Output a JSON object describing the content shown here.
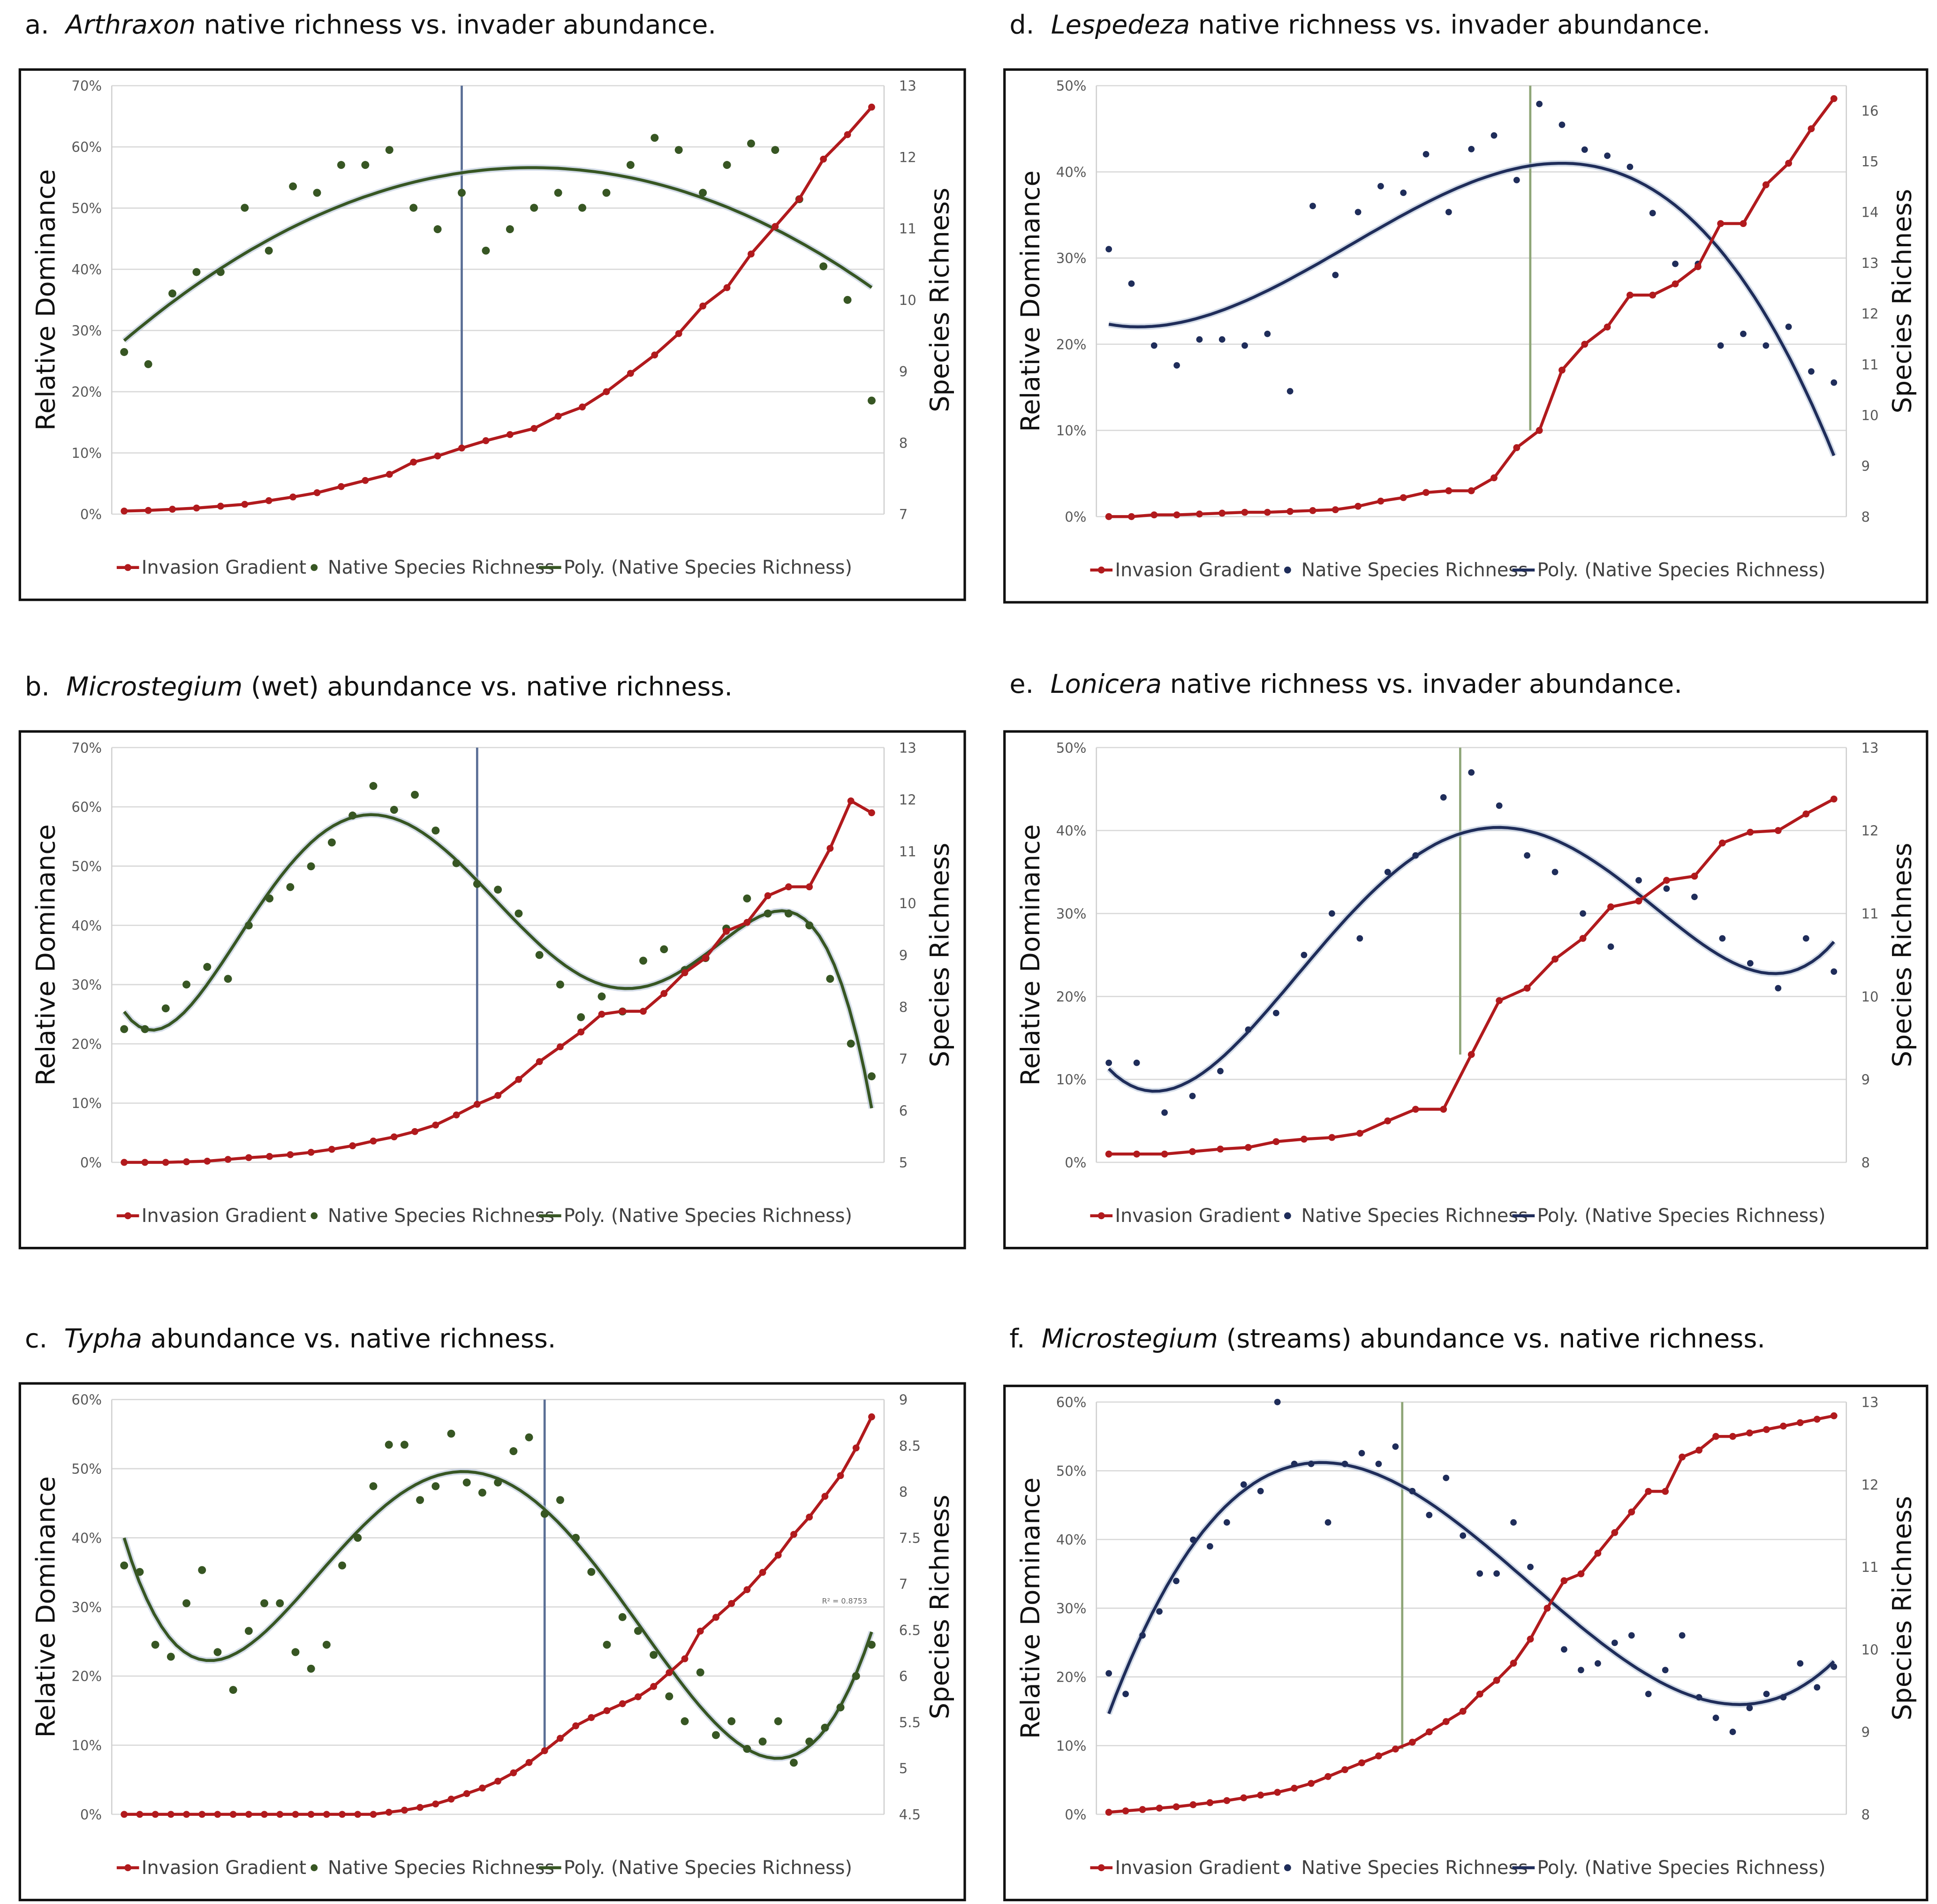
{
  "colors": {
    "invasion": "#b11a1d",
    "green": "#375623",
    "navy": "#1f2d5a",
    "grid": "#d9d9d9",
    "vline_blue": "#5b6f96",
    "vline_green": "#8fa678"
  },
  "chart_data": [
    {
      "id": "a",
      "type": "line",
      "title": {
        "letter": "a.",
        "genus": "Arthraxon",
        "rest": " native richness vs. invader abundance."
      },
      "ylabel": "Relative Dominance",
      "y2label": "Species Richness",
      "ylim": [
        0,
        70
      ],
      "yticks": [
        "0%",
        "10%",
        "20%",
        "30%",
        "40%",
        "50%",
        "60%",
        "70%"
      ],
      "y2lim": [
        7,
        13
      ],
      "y2ticks": [
        "7",
        "8",
        "9",
        "10",
        "11",
        "12",
        "13"
      ],
      "legend": [
        "Invasion Gradient",
        "Native Species Richness",
        "Poly. (Native Species Richness)"
      ],
      "richness_color": "green",
      "vline_color": "vline_blue",
      "threshold_index": 14,
      "poly_degree": 2,
      "invasion": [
        0.5,
        0.6,
        0.8,
        1,
        1.3,
        1.6,
        2.2,
        2.8,
        3.5,
        4.5,
        5.5,
        6.5,
        8.5,
        9.5,
        10.8,
        12,
        13,
        14,
        16,
        17.5,
        20,
        23,
        26,
        29.5,
        34,
        37,
        42.5,
        47,
        51.5,
        58,
        62,
        66.5
      ],
      "richness": [
        9.27,
        9.1,
        10.09,
        10.39,
        10.39,
        11.29,
        10.69,
        11.59,
        11.5,
        11.89,
        11.89,
        12.1,
        11.29,
        10.99,
        11.5,
        10.69,
        10.99,
        11.29,
        11.5,
        11.29,
        11.5,
        11.89,
        12.27,
        12.1,
        11.5,
        11.89,
        12.19,
        12.1,
        11.41,
        10.47,
        10.0,
        8.59
      ]
    },
    {
      "id": "d",
      "type": "line",
      "title": {
        "letter": "d.",
        "genus": "Lespedeza",
        "rest": " native richness vs. invader abundance."
      },
      "ylabel": "Relative Dominance",
      "y2label": "Species Richness",
      "ylim": [
        0,
        50
      ],
      "yticks": [
        "0%",
        "10%",
        "20%",
        "30%",
        "40%",
        "50%"
      ],
      "y2lim": [
        8,
        16.49
      ],
      "y2ticks": [
        "8",
        "9",
        "10",
        "11",
        "12",
        "13",
        "14",
        "15",
        "16"
      ],
      "legend": [
        "Invasion Gradient",
        "Native Species Richness",
        "Poly. (Native Species Richness)"
      ],
      "richness_color": "navy",
      "vline_color": "vline_green",
      "threshold_index": 18.6,
      "poly_degree": 3,
      "invasion": [
        0,
        0,
        0.2,
        0.2,
        0.3,
        0.4,
        0.5,
        0.5,
        0.6,
        0.7,
        0.8,
        1.2,
        1.8,
        2.2,
        2.8,
        3,
        3,
        4.5,
        8,
        10,
        17,
        20,
        22,
        25.7,
        25.7,
        27,
        29,
        34,
        34,
        38.5,
        41,
        45,
        48.5
      ],
      "richness": [
        13.27,
        12.59,
        11.37,
        10.98,
        11.49,
        11.49,
        11.37,
        11.6,
        10.47,
        14.12,
        12.76,
        14.0,
        14.51,
        14.38,
        15.14,
        14.0,
        15.24,
        15.51,
        14.63,
        16.13,
        15.72,
        15.23,
        15.11,
        14.89,
        13.98,
        12.98,
        12.98,
        11.37,
        11.6,
        11.37,
        11.74,
        10.86,
        10.64
      ]
    },
    {
      "id": "b",
      "type": "line",
      "title": {
        "letter": "b.",
        "genus": "Microstegium",
        "rest": " (wet) abundance vs. native richness."
      },
      "ylabel": "Relative Dominance",
      "y2label": "Species Richness",
      "ylim": [
        0,
        70
      ],
      "yticks": [
        "0%",
        "10%",
        "20%",
        "30%",
        "40%",
        "50%",
        "60%",
        "70%"
      ],
      "y2lim": [
        5,
        13
      ],
      "y2ticks": [
        "5",
        "6",
        "7",
        "8",
        "9",
        "10",
        "11",
        "12",
        "13"
      ],
      "legend": [
        "Invasion Gradient",
        "Native Species Richness",
        "Poly. (Native Species Richness)"
      ],
      "richness_color": "green",
      "vline_color": "vline_blue",
      "threshold_index": 17,
      "poly_degree": 6,
      "invasion": [
        0,
        0,
        0,
        0.1,
        0.2,
        0.5,
        0.8,
        1,
        1.3,
        1.7,
        2.2,
        2.8,
        3.6,
        4.3,
        5.2,
        6.3,
        8,
        9.8,
        11.3,
        14,
        17,
        19.5,
        22,
        25,
        25.5,
        25.5,
        28.5,
        32,
        34.5,
        39,
        40.5,
        45,
        46.5,
        46.5,
        53,
        61,
        59
      ],
      "richness": [
        7.57,
        7.57,
        7.97,
        8.43,
        8.77,
        8.54,
        9.57,
        10.09,
        10.31,
        10.71,
        11.17,
        11.69,
        12.26,
        11.8,
        12.09,
        11.4,
        10.77,
        10.37,
        10.26,
        9.8,
        9.0,
        8.43,
        7.8,
        8.2,
        7.91,
        8.89,
        9.11,
        8.71,
        8.94,
        9.51,
        10.09,
        9.8,
        9.8,
        9.57,
        8.54,
        7.29,
        6.66
      ]
    },
    {
      "id": "e",
      "type": "line",
      "title": {
        "letter": "e.",
        "genus": "Lonicera",
        "rest": " native richness vs. invader abundance."
      },
      "ylabel": "Relative Dominance",
      "y2label": "Species Richness",
      "ylim": [
        0,
        50
      ],
      "yticks": [
        "0%",
        "10%",
        "20%",
        "30%",
        "40%",
        "50%"
      ],
      "y2lim": [
        8,
        13
      ],
      "y2ticks": [
        "8",
        "9",
        "10",
        "11",
        "12",
        "13"
      ],
      "legend": [
        "Invasion Gradient",
        "Native Species Richness",
        "Poly. (Native Species Richness)"
      ],
      "richness_color": "navy",
      "vline_color": "vline_green",
      "threshold_index": 12.6,
      "poly_degree": 4,
      "invasion": [
        1,
        1,
        1,
        1.3,
        1.6,
        1.8,
        2.5,
        2.8,
        3,
        3.5,
        5,
        6.4,
        6.4,
        13,
        19.5,
        21,
        24.5,
        27,
        30.8,
        31.5,
        34,
        34.5,
        38.5,
        39.8,
        40,
        42,
        43.8
      ],
      "richness": [
        9.2,
        9.2,
        8.6,
        8.8,
        9.1,
        9.6,
        9.8,
        10.5,
        11,
        10.7,
        11.5,
        11.7,
        12.4,
        12.7,
        12.3,
        11.7,
        11.5,
        11,
        10.6,
        11.4,
        11.3,
        11.2,
        10.7,
        10.4,
        10.1,
        10.7,
        10.3
      ]
    },
    {
      "id": "c",
      "type": "line",
      "title": {
        "letter": "c.",
        "genus": "Typha",
        "rest": " abundance vs. native richness."
      },
      "ylabel": "Relative Dominance",
      "y2label": "Species Richness",
      "ylim": [
        0,
        60
      ],
      "yticks": [
        "0%",
        "10%",
        "20%",
        "30%",
        "40%",
        "50%",
        "60%"
      ],
      "y2lim": [
        4.5,
        9
      ],
      "y2ticks": [
        "4.5",
        "5",
        "5.5",
        "6",
        "6.5",
        "7",
        "7.5",
        "8",
        "8.5",
        "9"
      ],
      "legend": [
        "Invasion Gradient",
        "Native Species Richness",
        "Poly. (Native Species Richness)"
      ],
      "annotation": "R² = 0.8753",
      "richness_color": "green",
      "vline_color": "vline_blue",
      "threshold_index": 27,
      "poly_degree": 5,
      "invasion": [
        0,
        0,
        0,
        0,
        0,
        0,
        0,
        0,
        0,
        0,
        0,
        0,
        0,
        0,
        0,
        0,
        0,
        0.3,
        0.6,
        1,
        1.5,
        2.2,
        3,
        3.8,
        4.8,
        6,
        7.5,
        9.2,
        11,
        12.8,
        14,
        15,
        16,
        17,
        18.5,
        20.5,
        22.5,
        26.5,
        28.5,
        30.5,
        32.5,
        35,
        37.5,
        40.5,
        43,
        46,
        49,
        53,
        57.5
      ],
      "richness": [
        7.2,
        7.13,
        6.34,
        6.21,
        6.79,
        7.15,
        6.26,
        5.85,
        6.49,
        6.79,
        6.79,
        6.26,
        6.08,
        6.34,
        7.2,
        7.5,
        8.06,
        8.51,
        8.51,
        7.91,
        8.06,
        8.63,
        8.1,
        7.99,
        8.1,
        8.44,
        8.59,
        7.76,
        7.91,
        7.5,
        7.13,
        6.34,
        6.64,
        6.49,
        6.23,
        5.78,
        5.51,
        6.04,
        5.36,
        5.51,
        5.21,
        5.29,
        5.51,
        5.06,
        5.29,
        5.44,
        5.66,
        6.0,
        6.34
      ]
    },
    {
      "id": "f",
      "type": "line",
      "title": {
        "letter": "f.",
        "genus": "Microstegium",
        "rest": " (streams) abundance vs. native richness."
      },
      "ylabel": "Relative Dominance",
      "y2label": "Species Richness",
      "ylim": [
        0,
        60
      ],
      "yticks": [
        "0%",
        "10%",
        "20%",
        "30%",
        "40%",
        "50%",
        "60%"
      ],
      "y2lim": [
        8,
        13
      ],
      "y2ticks": [
        "8",
        "9",
        "10",
        "11",
        "12",
        "13"
      ],
      "legend": [
        "Invasion Gradient",
        "Native Species Richness",
        "Poly. (Native Species Richness)"
      ],
      "richness_color": "navy",
      "vline_color": "vline_green",
      "threshold_index": 17.4,
      "poly_degree": 3,
      "invasion": [
        0.3,
        0.5,
        0.7,
        0.9,
        1.1,
        1.4,
        1.7,
        2,
        2.4,
        2.8,
        3.2,
        3.8,
        4.5,
        5.5,
        6.5,
        7.5,
        8.5,
        9.5,
        10.5,
        12,
        13.5,
        15,
        17.5,
        19.5,
        22,
        25.5,
        30,
        34,
        35,
        38,
        41,
        44,
        47,
        47,
        52,
        53,
        55,
        55,
        55.5,
        56,
        56.5,
        57,
        57.5,
        58
      ],
      "richness": [
        9.71,
        9.46,
        10.17,
        10.46,
        10.83,
        11.33,
        11.25,
        11.54,
        12,
        11.92,
        13,
        12.25,
        12.25,
        11.54,
        12.25,
        12.38,
        12.25,
        12.46,
        11.92,
        11.63,
        12.08,
        11.38,
        10.92,
        10.92,
        11.54,
        11,
        10.5,
        10,
        9.75,
        9.83,
        10.08,
        10.17,
        9.46,
        9.75,
        10.17,
        9.42,
        9.17,
        9,
        9.29,
        9.46,
        9.42,
        9.83,
        9.54,
        9.79
      ]
    }
  ]
}
